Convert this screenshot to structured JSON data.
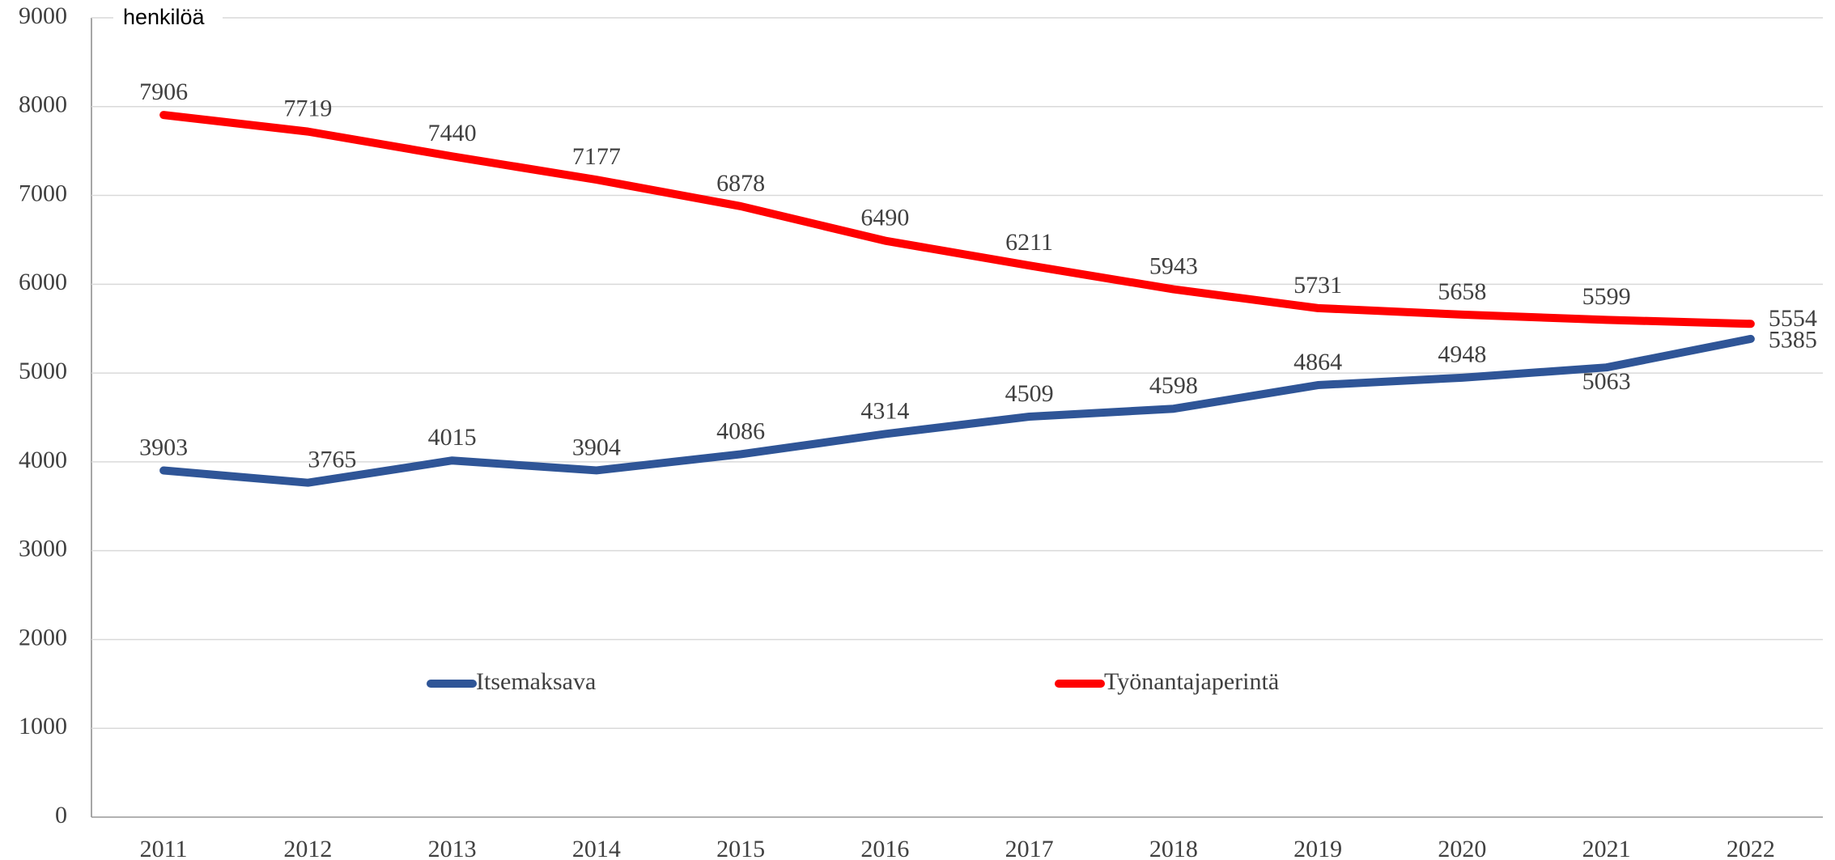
{
  "chart_data": {
    "type": "line",
    "y_label": "henkilöä",
    "categories": [
      "2011",
      "2012",
      "2013",
      "2014",
      "2015",
      "2016",
      "2017",
      "2018",
      "2019",
      "2020",
      "2021",
      "2022"
    ],
    "series": [
      {
        "name": "Itsemaksava",
        "color": "#2f5597",
        "values": [
          3903,
          3765,
          4015,
          3904,
          4086,
          4314,
          4509,
          4598,
          4864,
          4948,
          5063,
          5385
        ]
      },
      {
        "name": "Työnantajaperintä",
        "color": "#ff0000",
        "values": [
          7906,
          7719,
          7440,
          7177,
          6878,
          6490,
          6211,
          5943,
          5731,
          5658,
          5599,
          5554
        ]
      }
    ],
    "ylim": [
      0,
      9000
    ],
    "yticks": [
      0,
      1000,
      2000,
      3000,
      4000,
      5000,
      6000,
      7000,
      8000,
      9000
    ],
    "grid": true
  }
}
